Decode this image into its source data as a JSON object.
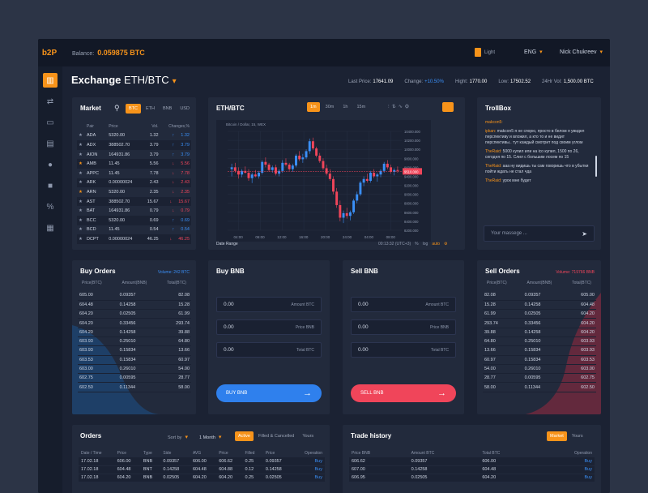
{
  "header": {
    "logo": "b2P",
    "balance_label": "Balance:",
    "balance_value": "0.059875 BTC",
    "theme": "Light",
    "language": "ENG",
    "user": "Nick Chukreev"
  },
  "sidebar": {
    "icons": [
      "chart-icon",
      "exchange-icon",
      "wallet-icon",
      "document-icon",
      "user-icon",
      "lock-icon",
      "percent-icon",
      "bank-icon"
    ]
  },
  "exchange": {
    "title": "Exchange",
    "pair": "ETH/BTC",
    "stats": {
      "last_price_label": "Last Price:",
      "last_price": "17641.09",
      "change_label": "Change:",
      "change": "+10.50%",
      "high_label": "Hight:",
      "high": "1770.00",
      "low_label": "Low:",
      "low": "17502.52",
      "vol_label": "24Hr Vol:",
      "vol": "1,500.00 BTC"
    }
  },
  "market": {
    "title": "Market",
    "tabs": [
      "BTC",
      "ETH",
      "BNB",
      "USD"
    ],
    "active_tab": "BTC",
    "columns": [
      "Pair",
      "Price",
      "Vol.",
      "Changes,%"
    ],
    "rows": [
      {
        "pair": "ADA",
        "price": "5320.00",
        "vol": "1.32",
        "change": "1.32",
        "dir": "up"
      },
      {
        "pair": "ADX",
        "price": "388502.70",
        "vol": "3.79",
        "change": "3.79",
        "dir": "up"
      },
      {
        "pair": "AION",
        "price": "164931.86",
        "vol": "3.79",
        "change": "3.79",
        "dir": "up"
      },
      {
        "pair": "AMB",
        "price": "11.45",
        "vol": "5.56",
        "change": "5.56",
        "dir": "down"
      },
      {
        "pair": "APPC",
        "price": "11.45",
        "vol": "7.78",
        "change": "7.78",
        "dir": "down"
      },
      {
        "pair": "ARK",
        "price": "0.00000024",
        "vol": "2.43",
        "change": "2.43",
        "dir": "down"
      },
      {
        "pair": "ARN",
        "price": "5320.00",
        "vol": "2.35",
        "change": "2.35",
        "dir": "down"
      },
      {
        "pair": "AST",
        "price": "388502.70",
        "vol": "15.67",
        "change": "15.67",
        "dir": "down"
      },
      {
        "pair": "BAT",
        "price": "164931.86",
        "vol": "0.79",
        "change": "0.79",
        "dir": "down"
      },
      {
        "pair": "BCC",
        "price": "5320.00",
        "vol": "0.69",
        "change": "0.69",
        "dir": "up"
      },
      {
        "pair": "BCD",
        "price": "11.45",
        "vol": "0.54",
        "change": "0.54",
        "dir": "up"
      },
      {
        "pair": "DCPT",
        "price": "0.00000024",
        "vol": "46.25",
        "change": "46.25",
        "dir": "down"
      }
    ]
  },
  "chart": {
    "title": "ETH/BTC",
    "intervals": [
      "1m",
      "30m",
      "1h",
      "15m"
    ],
    "active_interval": "1m",
    "legend": "Bitcoin / Dollar, 15, WEX",
    "price_marker": "9510.000",
    "date_range": "Date Range",
    "time_info": "00:13:32 (UTC+3)",
    "log": "log",
    "auto": "auto"
  },
  "chart_data": {
    "type": "candlestick",
    "y_ticks": [
      "10400.000",
      "10200.000",
      "10000.000",
      "9800.000",
      "9600.000",
      "9400.000",
      "9200.000",
      "9000.000",
      "8800.000",
      "8600.000",
      "8400.000",
      "8200.000"
    ],
    "x_ticks": [
      "04:00",
      "06:00",
      "12:00",
      "16:00",
      "20:00",
      "24:00",
      "04:00",
      "08:00"
    ],
    "ylim": [
      8200,
      10400
    ],
    "candles": [
      [
        9560,
        9680,
        9400,
        9600
      ],
      [
        9600,
        9700,
        9480,
        9520
      ],
      [
        9520,
        9600,
        9350,
        9440
      ],
      [
        9440,
        9560,
        9380,
        9520
      ],
      [
        9520,
        9620,
        9460,
        9480
      ],
      [
        9480,
        9560,
        9300,
        9360
      ],
      [
        9360,
        9480,
        9250,
        9440
      ],
      [
        9440,
        9540,
        9380,
        9400
      ],
      [
        9400,
        9520,
        9350,
        9480
      ],
      [
        9480,
        9760,
        9440,
        9720
      ],
      [
        9720,
        9820,
        9600,
        9660
      ],
      [
        9660,
        9700,
        9500,
        9540
      ],
      [
        9540,
        9640,
        9480,
        9600
      ],
      [
        9600,
        9660,
        9420,
        9460
      ],
      [
        9460,
        9560,
        9400,
        9520
      ],
      [
        9520,
        9760,
        9480,
        9700
      ],
      [
        9700,
        9800,
        9620,
        9660
      ],
      [
        9660,
        9700,
        9520,
        9560
      ],
      [
        9560,
        9680,
        9500,
        9640
      ],
      [
        9640,
        9900,
        9600,
        9860
      ],
      [
        9860,
        9960,
        9740,
        9780
      ],
      [
        9780,
        9900,
        9700,
        9820
      ],
      [
        9820,
        10000,
        9780,
        9960
      ],
      [
        9960,
        10240,
        9900,
        10180
      ],
      [
        10180,
        10260,
        9980,
        10020
      ],
      [
        10020,
        10060,
        9820,
        9860
      ],
      [
        9860,
        9920,
        9700,
        9740
      ],
      [
        9740,
        9800,
        9540,
        9580
      ],
      [
        9580,
        9660,
        9420,
        9460
      ],
      [
        9460,
        9560,
        9300,
        9340
      ],
      [
        9340,
        9400,
        9000,
        9060
      ],
      [
        9060,
        9140,
        8700,
        8760
      ],
      [
        8760,
        8860,
        8400,
        8480
      ],
      [
        8480,
        8640,
        8360,
        8580
      ],
      [
        8580,
        8700,
        8460,
        8520
      ],
      [
        8520,
        8640,
        8420,
        8600
      ],
      [
        8600,
        8900,
        8560,
        8860
      ],
      [
        8860,
        9060,
        8800,
        9000
      ],
      [
        9000,
        9300,
        8960,
        9260
      ],
      [
        9260,
        9400,
        9180,
        9340
      ],
      [
        9340,
        9460,
        9260,
        9300
      ],
      [
        9300,
        9520,
        9260,
        9480
      ],
      [
        9480,
        9560,
        9360,
        9400
      ],
      [
        9400,
        9480,
        9280,
        9440
      ],
      [
        9440,
        9560,
        9380,
        9520
      ],
      [
        9520,
        9720,
        9480,
        9680
      ],
      [
        9680,
        9760,
        9560,
        9600
      ],
      [
        9600,
        9660,
        9460,
        9500
      ],
      [
        9500,
        9580,
        9420,
        9540
      ],
      [
        9540,
        9620,
        9480,
        9520
      ]
    ]
  },
  "trollbox": {
    "title": "TrollBox",
    "messages": [
      {
        "user": "makcon5",
        "text": ""
      },
      {
        "user": "ipkan",
        "text": "makcon5 я не спорю, просто в белом я увидел перспективу и вложил, а кто то и не видит перспективы.. тут каждый смотрит под своим углом"
      },
      {
        "user": "TheRaid",
        "text": "5000 купил или на ico купил, 1500 по 26, сегодня по 15. Слил с большим лосем по 15"
      },
      {
        "user": "TheRaid",
        "text": "ааа ну видишь ты сам говоришь что в убытки пойти ждать не стал чда"
      },
      {
        "user": "TheRaid",
        "text": "урок мне будет"
      }
    ],
    "placeholder": "Your massege ..."
  },
  "buy_orders": {
    "title": "Buy Orders",
    "volume": "Volume: 242 BTC",
    "columns": [
      "Price(BTC)",
      "Amount(BNB)",
      "Total(BTC)"
    ],
    "rows": [
      [
        "605.00",
        "0.09357",
        "82.08"
      ],
      [
        "604.48",
        "0.14258",
        "15.28"
      ],
      [
        "604.20",
        "0.02505",
        "61.99"
      ],
      [
        "604.20",
        "0.33456",
        "293.74"
      ],
      [
        "604.20",
        "0.14258",
        "39.88"
      ],
      [
        "603.93",
        "0.25010",
        "64.80"
      ],
      [
        "603.93",
        "0.15834",
        "13.66"
      ],
      [
        "603.53",
        "0.15834",
        "60.97"
      ],
      [
        "603.00",
        "0.26010",
        "54.00"
      ],
      [
        "602.75",
        "0.00595",
        "28.77"
      ],
      [
        "602.50",
        "0.11344",
        "58.00"
      ]
    ]
  },
  "buy_bnb": {
    "title": "Buy BNB",
    "amount_value": "0.00",
    "amount_label": "Amount BTC",
    "price_value": "0.00",
    "price_label": "Price BNB",
    "total_value": "0.00",
    "total_label": "Total BTC",
    "button": "BUY BNB"
  },
  "sell_bnb": {
    "title": "Sell BNB",
    "amount_value": "0.00",
    "amount_label": "Amount BTC",
    "price_value": "0.00",
    "price_label": "Price BNB",
    "total_value": "0.00",
    "total_label": "Total BTC",
    "button": "SELL BNB"
  },
  "sell_orders": {
    "title": "Sell Orders",
    "volume": "Volume: 719766 BNB",
    "columns": [
      "Price(BTC)",
      "Amount(BNB)",
      "Total(BTC)"
    ],
    "rows": [
      [
        "82.08",
        "0.09357",
        "605.00"
      ],
      [
        "15.28",
        "0.14258",
        "604.48"
      ],
      [
        "61.99",
        "0.02505",
        "604.20"
      ],
      [
        "293.74",
        "0.33456",
        "604.20"
      ],
      [
        "39.88",
        "0.14258",
        "604.20"
      ],
      [
        "64.80",
        "0.25010",
        "603.93"
      ],
      [
        "13.66",
        "0.15834",
        "603.93"
      ],
      [
        "60.97",
        "0.15834",
        "603.53"
      ],
      [
        "54.00",
        "0.26010",
        "603.00"
      ],
      [
        "28.77",
        "0.00595",
        "602.75"
      ],
      [
        "58.00",
        "0.11344",
        "602.50"
      ]
    ]
  },
  "orders": {
    "title": "Orders",
    "sort_label": "Sort by",
    "sort_value": "1 Month",
    "tabs": [
      "Active",
      "Filled & Cancelled",
      "Yours"
    ],
    "active_tab": "Active",
    "columns": [
      "Date / Time",
      "Price",
      "Type",
      "Side",
      "AVG",
      "Price",
      "Filled",
      "Price",
      "Operation"
    ],
    "rows": [
      [
        "17.02.18",
        "606.00",
        "BNB",
        "0.09357",
        "606.00",
        "606.62",
        "0.25",
        "0.09357",
        "Buy"
      ],
      [
        "17.02.18",
        "604.48",
        "BNT",
        "0.14258",
        "604.48",
        "604.88",
        "0.12",
        "0.14258",
        "Buy"
      ],
      [
        "17.02.18",
        "604.20",
        "BNB",
        "0.02505",
        "604.20",
        "604.20",
        "0.25",
        "0.02505",
        "Buy"
      ]
    ]
  },
  "trade_history": {
    "title": "Trade history",
    "tabs": [
      "Market",
      "Yours"
    ],
    "active_tab": "Market",
    "columns": [
      "Price BNB",
      "Amount BTC",
      "Total BTC",
      "Operation"
    ],
    "rows": [
      [
        "606.62",
        "0.09357",
        "606.00",
        "Buy"
      ],
      [
        "607.00",
        "0.14258",
        "604.48",
        "Buy"
      ],
      [
        "606.95",
        "0.02505",
        "604.20",
        "Buy"
      ]
    ]
  }
}
